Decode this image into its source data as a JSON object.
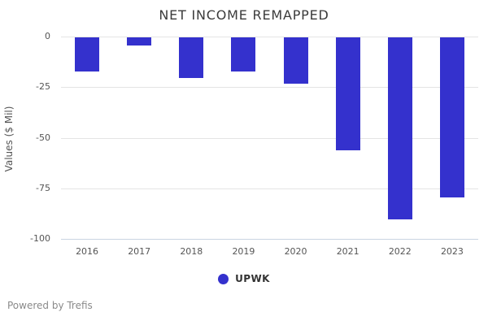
{
  "title": "NET INCOME REMAPPED",
  "chart_data": {
    "type": "bar",
    "title": "NET INCOME REMAPPED",
    "xlabel": "",
    "ylabel": "Values ($ Mil)",
    "categories": [
      "2016",
      "2017",
      "2018",
      "2019",
      "2020",
      "2021",
      "2022",
      "2023"
    ],
    "series": [
      {
        "name": "UPWK",
        "values": [
          -17,
          -4,
          -20,
          -17,
          -23,
          -56,
          -90,
          -79
        ]
      }
    ],
    "ylim": [
      -100,
      0
    ],
    "yticks": [
      0,
      -25,
      -50,
      -75,
      -100
    ],
    "ytick_labels": [
      "0",
      "-25",
      "-50",
      "-75",
      "-100"
    ],
    "grid": true,
    "legend_position": "bottom",
    "bar_color": "#3431cd"
  },
  "legend": {
    "items": [
      {
        "label": "UPWK",
        "color": "#3431cd"
      }
    ]
  },
  "footer": {
    "text": "Powered by Trefis"
  },
  "colors": {
    "bar": "#3431cd",
    "gridline": "#e4e4e4",
    "axis_line": "#c9d4e2",
    "title_text": "#3b3b3b",
    "tick_text": "#555555",
    "footer_text": "#8a8a8a"
  }
}
